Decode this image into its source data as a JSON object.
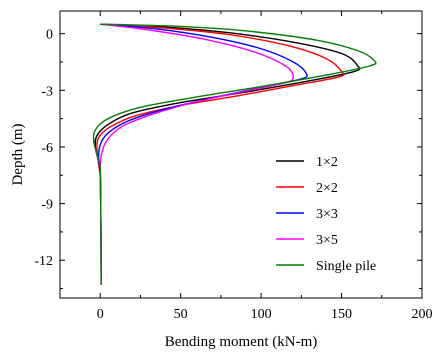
{
  "chart_data": {
    "type": "line",
    "title": "",
    "xlabel": "Bending moment (kN-m)",
    "ylabel": "Depth (m)",
    "xlim": [
      -25,
      200
    ],
    "ylim": [
      -14,
      1.2
    ],
    "x_ticks": [
      0,
      50,
      100,
      150,
      200
    ],
    "x_tick_labels": [
      "0",
      "50",
      "100",
      "150",
      "200"
    ],
    "y_ticks": [
      0,
      -3,
      -6,
      -9,
      -12
    ],
    "y_tick_labels": [
      "0",
      "-3",
      "-6",
      "-9",
      "-12"
    ],
    "grid": false,
    "legend_position": "bottom-right",
    "series": [
      {
        "name": "1×2",
        "color": "#000000",
        "points": [
          [
            0,
            0.5
          ],
          [
            40,
            0.35
          ],
          [
            80,
            0.05
          ],
          [
            120,
            -0.45
          ],
          [
            150,
            -1.05
          ],
          [
            160,
            -1.7
          ],
          [
            158,
            -2.0
          ],
          [
            130,
            -2.5
          ],
          [
            90,
            -3.1
          ],
          [
            50,
            -3.65
          ],
          [
            20,
            -4.2
          ],
          [
            5,
            -4.8
          ],
          [
            -2,
            -5.4
          ],
          [
            -3,
            -6.0
          ],
          [
            -1,
            -6.8
          ],
          [
            0,
            -7.5
          ],
          [
            0.3,
            -9
          ],
          [
            0.5,
            -11
          ],
          [
            0.6,
            -13.3
          ]
        ]
      },
      {
        "name": "2×2",
        "color": "#ff0000",
        "points": [
          [
            0,
            0.5
          ],
          [
            40,
            0.3
          ],
          [
            80,
            -0.05
          ],
          [
            115,
            -0.6
          ],
          [
            140,
            -1.3
          ],
          [
            150,
            -2.0
          ],
          [
            148,
            -2.3
          ],
          [
            120,
            -2.75
          ],
          [
            85,
            -3.3
          ],
          [
            50,
            -3.8
          ],
          [
            22,
            -4.35
          ],
          [
            6,
            -4.95
          ],
          [
            -1,
            -5.5
          ],
          [
            -2,
            -6.1
          ],
          [
            -1,
            -6.9
          ],
          [
            0,
            -7.6
          ],
          [
            0.3,
            -9
          ],
          [
            0.5,
            -11
          ],
          [
            0.6,
            -13.3
          ]
        ]
      },
      {
        "name": "3×3",
        "color": "#0000ff",
        "points": [
          [
            0,
            0.5
          ],
          [
            35,
            0.25
          ],
          [
            70,
            -0.2
          ],
          [
            100,
            -0.8
          ],
          [
            120,
            -1.5
          ],
          [
            128,
            -2.1
          ],
          [
            125,
            -2.4
          ],
          [
            100,
            -2.85
          ],
          [
            70,
            -3.4
          ],
          [
            40,
            -4.0
          ],
          [
            18,
            -4.6
          ],
          [
            5,
            -5.25
          ],
          [
            0,
            -5.9
          ],
          [
            -1,
            -6.6
          ],
          [
            0,
            -7.4
          ],
          [
            0.3,
            -9
          ],
          [
            0.5,
            -11
          ],
          [
            0.6,
            -13.3
          ]
        ]
      },
      {
        "name": "3×5",
        "color": "#ff00ff",
        "points": [
          [
            0,
            0.5
          ],
          [
            30,
            0.2
          ],
          [
            65,
            -0.3
          ],
          [
            95,
            -0.95
          ],
          [
            115,
            -1.7
          ],
          [
            120,
            -2.3
          ],
          [
            115,
            -2.6
          ],
          [
            90,
            -3.05
          ],
          [
            60,
            -3.6
          ],
          [
            35,
            -4.2
          ],
          [
            15,
            -4.85
          ],
          [
            5,
            -5.55
          ],
          [
            1,
            -6.3
          ],
          [
            0,
            -7.2
          ],
          [
            0.3,
            -9
          ],
          [
            0.5,
            -11
          ],
          [
            0.6,
            -13.3
          ]
        ]
      },
      {
        "name": "Single pile",
        "color": "#008000",
        "points": [
          [
            0,
            0.5
          ],
          [
            45,
            0.4
          ],
          [
            90,
            0.15
          ],
          [
            135,
            -0.35
          ],
          [
            160,
            -0.9
          ],
          [
            170,
            -1.4
          ],
          [
            168,
            -1.7
          ],
          [
            140,
            -2.2
          ],
          [
            100,
            -2.8
          ],
          [
            60,
            -3.35
          ],
          [
            25,
            -3.9
          ],
          [
            5,
            -4.5
          ],
          [
            -3,
            -5.1
          ],
          [
            -4,
            -5.7
          ],
          [
            -2,
            -6.4
          ],
          [
            0,
            -7.1
          ],
          [
            0.3,
            -9
          ],
          [
            0.5,
            -11
          ],
          [
            0.6,
            -13.3
          ]
        ]
      }
    ]
  }
}
